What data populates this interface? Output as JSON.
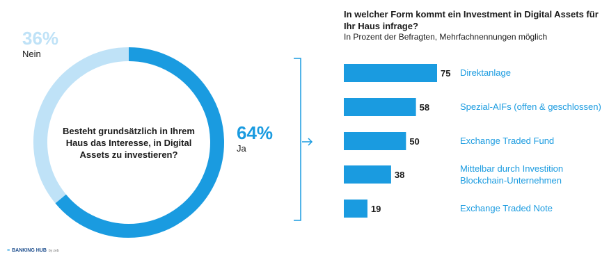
{
  "chart_data": [
    {
      "type": "pie",
      "donut": true,
      "question": "Besteht grundsätzlich in Ihrem Haus das Interesse, in Digital Assets zu investieren?",
      "slices": [
        {
          "name": "Ja",
          "value": 64,
          "label": "64%",
          "color": "#1a9be0"
        },
        {
          "name": "Nein",
          "value": 36,
          "label": "36%",
          "color": "#bfe2f7"
        }
      ]
    },
    {
      "type": "bar",
      "orientation": "horizontal",
      "title": "In welcher Form kommt ein Investment in Digital Assets für Ihr Haus infrage?",
      "subtitle": "In Prozent der Befragten, Mehrfachnennungen möglich",
      "categories": [
        "Direktanlage",
        "Spezial-AIFs (offen & geschlossen)",
        "Exchange Traded Fund",
        "Mittelbar durch Investition Blockchain-Unternehmen",
        "Exchange Traded Note"
      ],
      "values": [
        75,
        58,
        50,
        38,
        19
      ],
      "xlim": [
        0,
        75
      ],
      "color": "#1a9be0"
    }
  ],
  "footer": {
    "brand": "BANKING HUB",
    "suffix": "by zeb"
  }
}
